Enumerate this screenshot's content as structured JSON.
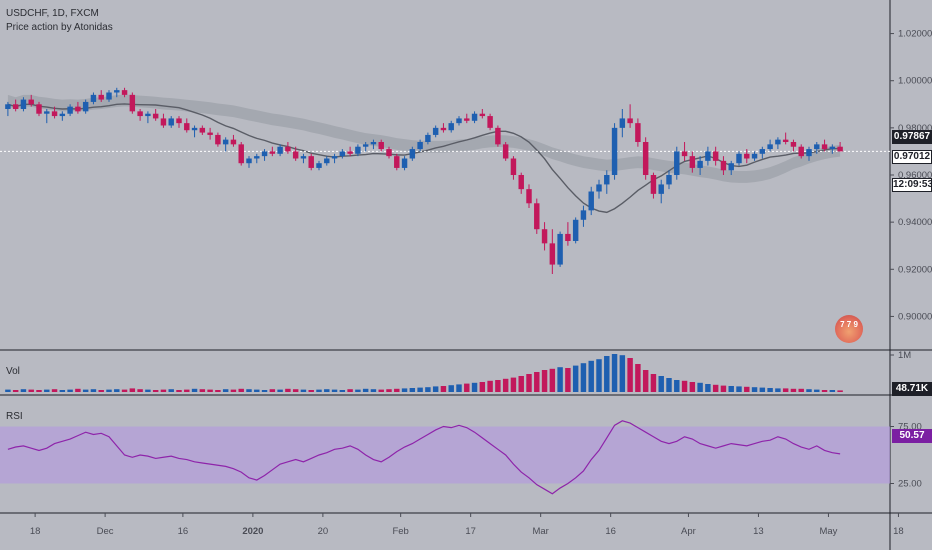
{
  "header": {
    "symbol_line": "USDCHF, 1D, FXCM",
    "indicator_line": "Price action by Atonidas"
  },
  "price_axis": {
    "ticks": [
      "1.02000",
      "1.00000",
      "0.98000",
      "0.96000",
      "0.94000",
      "0.92000",
      "0.90000"
    ],
    "tick_values": [
      1.02,
      1.0,
      0.98,
      0.96,
      0.94,
      0.92,
      0.9
    ],
    "last_price_badge": "0.97867",
    "current_price_badge": "0.97012",
    "countdown_badge": "12:09:53"
  },
  "volume_pane": {
    "label": "Vol",
    "axis_tick": "1M",
    "value_badge": "48.71K"
  },
  "rsi_pane": {
    "label": "RSI",
    "ticks": [
      "75.00",
      "25.00"
    ],
    "value_badge": "50.57"
  },
  "time_axis": {
    "labels": [
      "18",
      "Dec",
      "16",
      "2020",
      "20",
      "Feb",
      "17",
      "Mar",
      "16",
      "Apr",
      "13",
      "May",
      "18"
    ]
  },
  "watermark": {
    "text": "7 7 9"
  },
  "colors": {
    "up": "#1e5fb0",
    "down": "#c2185b",
    "ma": "#5a5d66",
    "band": "#9ea1aa",
    "rsi_line": "#8e24aa",
    "rsi_band": "#b39ddb"
  },
  "chart_data": {
    "type": "candlestick",
    "title": "USDCHF, 1D, FXCM",
    "ylim": [
      0.89,
      1.03
    ],
    "candles": [
      [
        0.988,
        0.991,
        0.985,
        0.99
      ],
      [
        0.99,
        0.992,
        0.987,
        0.988
      ],
      [
        0.988,
        0.993,
        0.987,
        0.992
      ],
      [
        0.992,
        0.994,
        0.989,
        0.99
      ],
      [
        0.99,
        0.991,
        0.985,
        0.986
      ],
      [
        0.986,
        0.988,
        0.982,
        0.987
      ],
      [
        0.987,
        0.989,
        0.984,
        0.985
      ],
      [
        0.985,
        0.987,
        0.983,
        0.986
      ],
      [
        0.986,
        0.99,
        0.985,
        0.989
      ],
      [
        0.989,
        0.991,
        0.986,
        0.987
      ],
      [
        0.987,
        0.992,
        0.986,
        0.991
      ],
      [
        0.991,
        0.995,
        0.99,
        0.994
      ],
      [
        0.994,
        0.996,
        0.991,
        0.992
      ],
      [
        0.992,
        0.996,
        0.991,
        0.995
      ],
      [
        0.995,
        0.997,
        0.993,
        0.996
      ],
      [
        0.996,
        0.997,
        0.993,
        0.994
      ],
      [
        0.994,
        0.995,
        0.986,
        0.987
      ],
      [
        0.987,
        0.988,
        0.983,
        0.985
      ],
      [
        0.985,
        0.987,
        0.982,
        0.986
      ],
      [
        0.986,
        0.988,
        0.983,
        0.984
      ],
      [
        0.984,
        0.986,
        0.98,
        0.981
      ],
      [
        0.981,
        0.985,
        0.98,
        0.984
      ],
      [
        0.984,
        0.985,
        0.98,
        0.982
      ],
      [
        0.982,
        0.984,
        0.978,
        0.979
      ],
      [
        0.979,
        0.981,
        0.976,
        0.98
      ],
      [
        0.98,
        0.981,
        0.977,
        0.978
      ],
      [
        0.978,
        0.98,
        0.975,
        0.977
      ],
      [
        0.977,
        0.978,
        0.972,
        0.973
      ],
      [
        0.973,
        0.976,
        0.97,
        0.975
      ],
      [
        0.975,
        0.977,
        0.972,
        0.973
      ],
      [
        0.973,
        0.974,
        0.964,
        0.965
      ],
      [
        0.965,
        0.968,
        0.963,
        0.967
      ],
      [
        0.967,
        0.969,
        0.965,
        0.968
      ],
      [
        0.968,
        0.971,
        0.966,
        0.97
      ],
      [
        0.97,
        0.972,
        0.968,
        0.969
      ],
      [
        0.969,
        0.973,
        0.968,
        0.972
      ],
      [
        0.972,
        0.974,
        0.969,
        0.97
      ],
      [
        0.97,
        0.972,
        0.966,
        0.967
      ],
      [
        0.967,
        0.969,
        0.965,
        0.968
      ],
      [
        0.968,
        0.969,
        0.962,
        0.963
      ],
      [
        0.963,
        0.966,
        0.962,
        0.965
      ],
      [
        0.965,
        0.968,
        0.964,
        0.967
      ],
      [
        0.967,
        0.969,
        0.965,
        0.968
      ],
      [
        0.968,
        0.971,
        0.967,
        0.97
      ],
      [
        0.97,
        0.972,
        0.968,
        0.969
      ],
      [
        0.969,
        0.973,
        0.968,
        0.972
      ],
      [
        0.972,
        0.974,
        0.97,
        0.973
      ],
      [
        0.973,
        0.975,
        0.971,
        0.974
      ],
      [
        0.974,
        0.975,
        0.97,
        0.971
      ],
      [
        0.971,
        0.972,
        0.967,
        0.968
      ],
      [
        0.968,
        0.969,
        0.962,
        0.963
      ],
      [
        0.963,
        0.968,
        0.962,
        0.967
      ],
      [
        0.967,
        0.972,
        0.966,
        0.971
      ],
      [
        0.971,
        0.975,
        0.97,
        0.974
      ],
      [
        0.974,
        0.978,
        0.973,
        0.977
      ],
      [
        0.977,
        0.981,
        0.976,
        0.98
      ],
      [
        0.98,
        0.982,
        0.978,
        0.979
      ],
      [
        0.979,
        0.983,
        0.978,
        0.982
      ],
      [
        0.982,
        0.985,
        0.981,
        0.984
      ],
      [
        0.984,
        0.986,
        0.982,
        0.983
      ],
      [
        0.983,
        0.987,
        0.982,
        0.986
      ],
      [
        0.986,
        0.988,
        0.984,
        0.985
      ],
      [
        0.985,
        0.986,
        0.979,
        0.98
      ],
      [
        0.98,
        0.981,
        0.972,
        0.973
      ],
      [
        0.973,
        0.974,
        0.966,
        0.967
      ],
      [
        0.967,
        0.968,
        0.958,
        0.96
      ],
      [
        0.96,
        0.961,
        0.952,
        0.954
      ],
      [
        0.954,
        0.956,
        0.946,
        0.948
      ],
      [
        0.948,
        0.95,
        0.935,
        0.937
      ],
      [
        0.937,
        0.94,
        0.928,
        0.931
      ],
      [
        0.931,
        0.937,
        0.918,
        0.922
      ],
      [
        0.922,
        0.936,
        0.921,
        0.935
      ],
      [
        0.935,
        0.94,
        0.93,
        0.932
      ],
      [
        0.932,
        0.942,
        0.931,
        0.941
      ],
      [
        0.941,
        0.947,
        0.938,
        0.945
      ],
      [
        0.945,
        0.955,
        0.943,
        0.953
      ],
      [
        0.953,
        0.958,
        0.95,
        0.956
      ],
      [
        0.956,
        0.962,
        0.952,
        0.96
      ],
      [
        0.96,
        0.982,
        0.958,
        0.98
      ],
      [
        0.98,
        0.988,
        0.976,
        0.984
      ],
      [
        0.984,
        0.99,
        0.98,
        0.982
      ],
      [
        0.982,
        0.984,
        0.972,
        0.974
      ],
      [
        0.974,
        0.976,
        0.958,
        0.96
      ],
      [
        0.96,
        0.961,
        0.95,
        0.952
      ],
      [
        0.952,
        0.958,
        0.948,
        0.956
      ],
      [
        0.956,
        0.962,
        0.954,
        0.96
      ],
      [
        0.96,
        0.972,
        0.958,
        0.97
      ],
      [
        0.97,
        0.974,
        0.966,
        0.968
      ],
      [
        0.968,
        0.97,
        0.961,
        0.963
      ],
      [
        0.963,
        0.968,
        0.96,
        0.966
      ],
      [
        0.966,
        0.972,
        0.964,
        0.97
      ],
      [
        0.97,
        0.972,
        0.964,
        0.966
      ],
      [
        0.966,
        0.968,
        0.96,
        0.962
      ],
      [
        0.962,
        0.966,
        0.96,
        0.965
      ],
      [
        0.965,
        0.97,
        0.964,
        0.969
      ],
      [
        0.969,
        0.971,
        0.965,
        0.967
      ],
      [
        0.967,
        0.97,
        0.966,
        0.969
      ],
      [
        0.969,
        0.972,
        0.967,
        0.971
      ],
      [
        0.971,
        0.975,
        0.97,
        0.973
      ],
      [
        0.973,
        0.976,
        0.971,
        0.975
      ],
      [
        0.975,
        0.978,
        0.973,
        0.974
      ],
      [
        0.974,
        0.975,
        0.97,
        0.972
      ],
      [
        0.972,
        0.973,
        0.967,
        0.968
      ],
      [
        0.968,
        0.972,
        0.966,
        0.971
      ],
      [
        0.971,
        0.974,
        0.969,
        0.973
      ],
      [
        0.973,
        0.975,
        0.97,
        0.971
      ],
      [
        0.971,
        0.973,
        0.969,
        0.972
      ],
      [
        0.972,
        0.974,
        0.97,
        0.97
      ]
    ],
    "volume": [
      0.06,
      0.05,
      0.07,
      0.06,
      0.05,
      0.06,
      0.07,
      0.05,
      0.06,
      0.08,
      0.06,
      0.07,
      0.05,
      0.06,
      0.07,
      0.06,
      0.09,
      0.07,
      0.06,
      0.05,
      0.06,
      0.07,
      0.05,
      0.06,
      0.08,
      0.07,
      0.06,
      0.05,
      0.07,
      0.06,
      0.08,
      0.07,
      0.06,
      0.05,
      0.07,
      0.06,
      0.08,
      0.07,
      0.06,
      0.05,
      0.06,
      0.07,
      0.06,
      0.05,
      0.07,
      0.06,
      0.08,
      0.07,
      0.06,
      0.07,
      0.08,
      0.09,
      0.1,
      0.11,
      0.12,
      0.14,
      0.15,
      0.17,
      0.19,
      0.21,
      0.23,
      0.25,
      0.28,
      0.3,
      0.33,
      0.36,
      0.4,
      0.45,
      0.5,
      0.55,
      0.58,
      0.62,
      0.6,
      0.66,
      0.72,
      0.78,
      0.82,
      0.9,
      0.95,
      0.92,
      0.85,
      0.7,
      0.55,
      0.45,
      0.4,
      0.35,
      0.3,
      0.28,
      0.25,
      0.23,
      0.2,
      0.18,
      0.16,
      0.15,
      0.14,
      0.13,
      0.12,
      0.11,
      0.1,
      0.09,
      0.09,
      0.08,
      0.08,
      0.07,
      0.06,
      0.05,
      0.05,
      0.04
    ],
    "rsi": [
      55,
      57,
      58,
      56,
      54,
      56,
      60,
      62,
      64,
      67,
      70,
      68,
      69,
      66,
      58,
      50,
      48,
      50,
      49,
      47,
      48,
      49,
      47,
      46,
      44,
      43,
      42,
      41,
      40,
      38,
      35,
      30,
      28,
      32,
      37,
      42,
      44,
      46,
      44,
      47,
      50,
      52,
      55,
      56,
      58,
      55,
      50,
      46,
      44,
      48,
      53,
      57,
      60,
      64,
      68,
      72,
      75,
      74,
      76,
      74,
      70,
      65,
      60,
      55,
      50,
      42,
      35,
      30,
      24,
      20,
      16,
      21,
      25,
      30,
      36,
      46,
      54,
      65,
      76,
      80,
      78,
      74,
      70,
      66,
      62,
      60,
      62,
      66,
      64,
      60,
      58,
      56,
      58,
      60,
      59,
      58,
      60,
      62,
      63,
      66,
      64,
      60,
      57,
      55,
      58,
      54,
      52,
      51
    ]
  }
}
